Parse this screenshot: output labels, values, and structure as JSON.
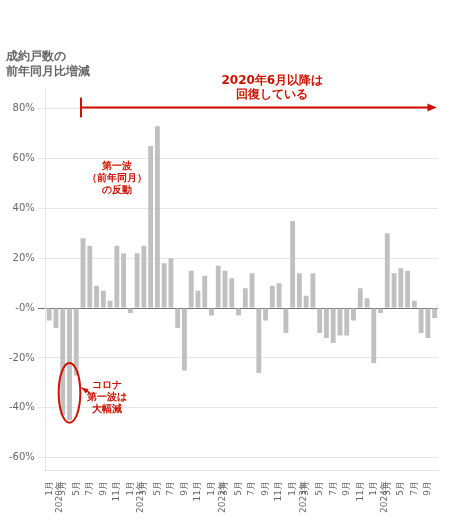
{
  "chart_data": {
    "type": "bar",
    "title": "成約戸数の\n前年同月比増減",
    "categories": [
      "1月\n2020年",
      null,
      "3月",
      null,
      "5月",
      null,
      "7月",
      null,
      "9月",
      null,
      "11月",
      null,
      "1月\n2021年",
      null,
      "3月",
      null,
      "5月",
      null,
      "7月",
      null,
      "9月",
      null,
      "11月",
      null,
      "1月\n2022年",
      null,
      "3月",
      null,
      "5月",
      null,
      "7月",
      null,
      "9月",
      null,
      "11月",
      null,
      "1月\n2023年",
      null,
      "3月",
      null,
      "5月",
      null,
      "7月",
      null,
      "9月",
      null,
      "11月",
      null,
      "1月\n2024年",
      null,
      "3月",
      null,
      "5月",
      null,
      "7月",
      null,
      "9月",
      null
    ],
    "values": [
      -5,
      -8,
      -43,
      -45,
      -27,
      28,
      25,
      9,
      7,
      3,
      25,
      22,
      -2,
      22,
      25,
      65,
      73,
      18,
      20,
      -8,
      -25,
      15,
      7,
      13,
      -3,
      17,
      15,
      12,
      -3,
      8,
      14,
      -26,
      -5,
      9,
      10,
      -10,
      35,
      14,
      5,
      14,
      -10,
      -12,
      -14,
      -11,
      -11,
      -5,
      8,
      4,
      -22,
      -2,
      30,
      14,
      16,
      15,
      3,
      -10,
      -12,
      -4
    ],
    "color": "#c0c0c0",
    "ylim": [
      -65,
      88
    ],
    "yticks": [
      {
        "value": -60,
        "label": "-60%"
      },
      {
        "value": -40,
        "label": "-40%"
      },
      {
        "value": -20,
        "label": "-20%"
      },
      {
        "value": 0,
        "label": "-0%"
      },
      {
        "value": 20,
        "label": "20%"
      },
      {
        "value": 40,
        "label": "40%"
      },
      {
        "value": 60,
        "label": "60%"
      },
      {
        "value": 80,
        "label": "80%"
      }
    ],
    "grid": true,
    "annotations": [
      {
        "text": "2020年6月以降は\n回復している",
        "color": "#cc1100"
      },
      {
        "text": "第一波\n（前年同月）\nの反動",
        "color": "#cc1100"
      },
      {
        "text": "コロナ\n第一波は\n大幅減",
        "color": "#cc1100"
      }
    ]
  }
}
